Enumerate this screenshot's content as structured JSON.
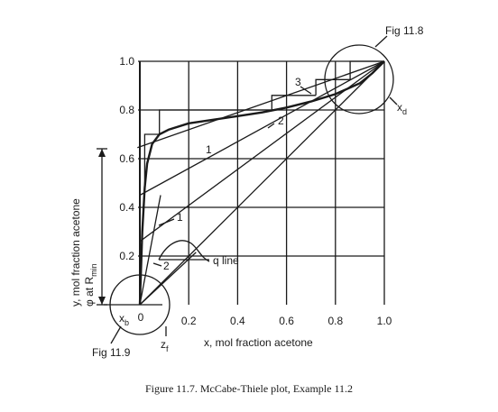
{
  "chart_data": {
    "type": "line",
    "caption": "Figure 11.7.    McCabe-Thiele plot, Example 11.2",
    "xlabel": "x, mol fraction acetone",
    "ylabel_line1": "y, mol fraction acetone",
    "ylabel_line2": "φ at R",
    "ylabel_line2_sub": "min",
    "xlim": [
      0,
      1.0
    ],
    "ylim": [
      0,
      1.0
    ],
    "x_ticks": [
      {
        "v": 0.2,
        "label": "0.2"
      },
      {
        "v": 0.4,
        "label": "0.4"
      },
      {
        "v": 0.6,
        "label": "0.6"
      },
      {
        "v": 0.8,
        "label": "0.8"
      },
      {
        "v": 1.0,
        "label": "1.0"
      }
    ],
    "y_ticks": [
      {
        "v": 0.2,
        "label": "0.2"
      },
      {
        "v": 0.4,
        "label": "0.4"
      },
      {
        "v": 0.6,
        "label": "0.6"
      },
      {
        "v": 0.8,
        "label": "0.8"
      },
      {
        "v": 1.0,
        "label": "1.0"
      }
    ],
    "origin_label": "0",
    "grid": true,
    "series": [
      {
        "name": "equilibrium curve",
        "x": [
          0,
          0.01,
          0.02,
          0.03,
          0.05,
          0.08,
          0.12,
          0.2,
          0.3,
          0.4,
          0.5,
          0.6,
          0.7,
          0.8,
          0.9,
          0.95,
          1.0
        ],
        "y": [
          0,
          0.3,
          0.48,
          0.58,
          0.66,
          0.7,
          0.72,
          0.745,
          0.76,
          0.775,
          0.79,
          0.81,
          0.835,
          0.865,
          0.91,
          0.95,
          1.0
        ]
      },
      {
        "name": "diagonal",
        "x": [
          0,
          1.0
        ],
        "y": [
          0,
          1.0
        ]
      },
      {
        "name": "operating line (top, minimum reflux)",
        "x": [
          -0.01,
          1.0
        ],
        "y": [
          0.645,
          1.0
        ]
      },
      {
        "name": "operating line (upper)",
        "x": [
          0,
          1.0
        ],
        "y": [
          0.45,
          1.0
        ]
      },
      {
        "name": "operating line (lower)",
        "x": [
          0,
          1.0
        ],
        "y": [
          0.26,
          1.0
        ]
      },
      {
        "name": "stripping line 1",
        "x": [
          0,
          0.085
        ],
        "y": [
          0,
          0.45
        ]
      },
      {
        "name": "stripping line 2",
        "x": [
          0,
          0.23
        ],
        "y": [
          0,
          0.215
        ]
      }
    ],
    "steps": [
      {
        "x": [
          1.0,
          0.86,
          0.86
        ],
        "y": [
          1.0,
          1.0,
          0.925
        ]
      },
      {
        "x": [
          0.86,
          0.72,
          0.72
        ],
        "y": [
          0.925,
          0.925,
          0.86
        ]
      },
      {
        "x": [
          0.72,
          0.54,
          0.54
        ],
        "y": [
          0.86,
          0.86,
          0.8
        ]
      },
      {
        "x": [
          0.54,
          0.08,
          0.08
        ],
        "y": [
          0.8,
          0.8,
          0.7
        ]
      },
      {
        "x": [
          0.08,
          0.02,
          0.02
        ],
        "y": [
          0.7,
          0.7,
          0.48
        ]
      }
    ],
    "annotations": {
      "fig_11_8": "Fig 11.8",
      "fig_11_9": "Fig 11.9",
      "xd": "x",
      "xd_sub": "d",
      "xb": "x",
      "xb_sub": "b",
      "zf": "z",
      "zf_sub": "f",
      "q_line": "q line",
      "stage_1": "1",
      "stage_2": "2",
      "stage_3": "3",
      "low_1": "1",
      "low_2": "2"
    }
  }
}
